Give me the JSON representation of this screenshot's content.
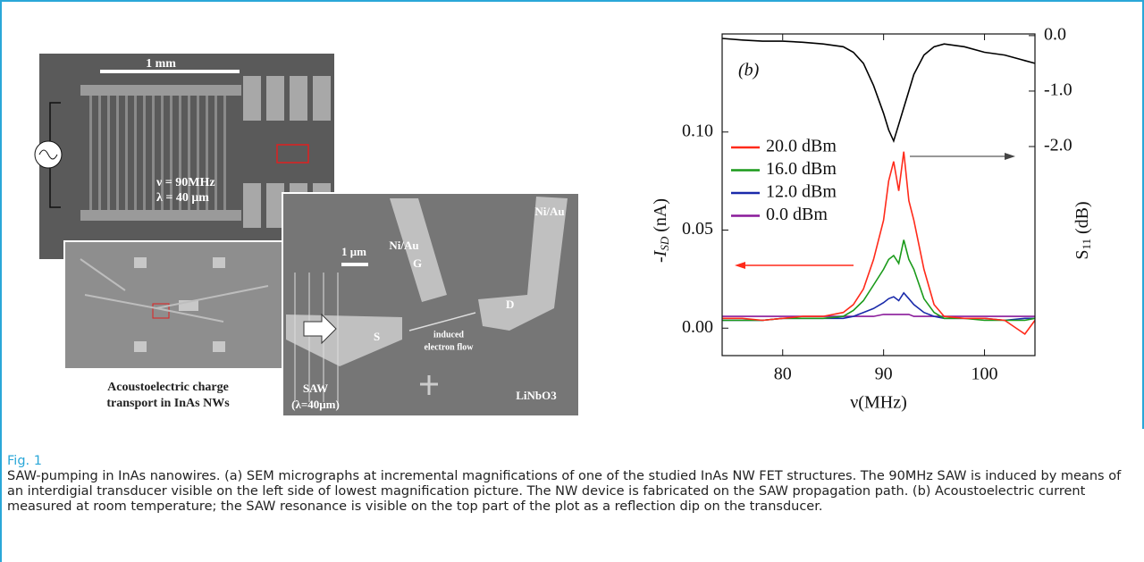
{
  "micrograph": {
    "scale_mm": "1 mm",
    "freq": "ν = 90MHz",
    "wavelength": "λ = 40 μm",
    "scale_um": "1 μm",
    "gate_metal": "Ni/Au",
    "gate": "G",
    "drain_metal": "Ni/Au",
    "drain": "D",
    "source": "S",
    "flow_1": "induced",
    "flow_2": "electron flow",
    "saw": "SAW",
    "saw_lambda": "(λ=40μm)",
    "substrate": "LiNbO3",
    "title_1": "Acoustoelectric charge",
    "title_2": "transport in InAs NWs"
  },
  "chart_data": {
    "type": "line",
    "panel_label": "(b)",
    "xlabel": "ν(MHz)",
    "ylabel": [
      "-I",
      "SD",
      "(nA)"
    ],
    "y2label": [
      "S",
      "11",
      "(dB)"
    ],
    "x": [
      74,
      76,
      78,
      80,
      82,
      84,
      86,
      87,
      88,
      89,
      90,
      90.5,
      91,
      91.5,
      92,
      92.5,
      93,
      94,
      95,
      96,
      98,
      100,
      102,
      104,
      105
    ],
    "xlim": [
      74,
      105
    ],
    "xticks": [
      80,
      90,
      100
    ],
    "ylim": [
      -0.014,
      0.15
    ],
    "yticks": [
      {
        "value": 0,
        "label": "0.00"
      },
      {
        "value": 0.05,
        "label": "0.05"
      },
      {
        "value": 0.1,
        "label": "0.10"
      }
    ],
    "y2lim": [
      -5.77,
      0.03
    ],
    "y2ticks": [
      {
        "value": 0,
        "label": "0.0"
      },
      {
        "value": -1,
        "label": "-1.0"
      },
      {
        "value": -2,
        "label": "-2.0"
      }
    ],
    "series": [
      {
        "color": "#000000",
        "axis": "y2",
        "values": [
          -0.05,
          -0.08,
          -0.1,
          -0.1,
          -0.12,
          -0.15,
          -0.2,
          -0.3,
          -0.5,
          -0.9,
          -1.4,
          -1.7,
          -1.9,
          -1.6,
          -1.3,
          -1.0,
          -0.7,
          -0.35,
          -0.2,
          -0.15,
          -0.2,
          -0.3,
          -0.35,
          -0.45,
          -0.5
        ]
      },
      {
        "name": "20.0 dBm",
        "color": "#ff2a1a",
        "values": [
          0.005,
          0.005,
          0.004,
          0.005,
          0.006,
          0.006,
          0.008,
          0.012,
          0.02,
          0.035,
          0.055,
          0.075,
          0.085,
          0.07,
          0.09,
          0.065,
          0.055,
          0.03,
          0.012,
          0.006,
          0.005,
          0.005,
          0.004,
          -0.003,
          0.004
        ]
      },
      {
        "name": "16.0 dBm",
        "color": "#1a9a1a",
        "values": [
          0.004,
          0.004,
          0.004,
          0.005,
          0.005,
          0.005,
          0.006,
          0.009,
          0.014,
          0.022,
          0.03,
          0.035,
          0.037,
          0.033,
          0.045,
          0.035,
          0.03,
          0.015,
          0.008,
          0.005,
          0.005,
          0.004,
          0.004,
          0.004,
          0.005
        ]
      },
      {
        "name": "12.0 dBm",
        "color": "#1a2aaa",
        "values": [
          0.004,
          0.004,
          0.004,
          0.005,
          0.005,
          0.005,
          0.005,
          0.006,
          0.008,
          0.01,
          0.013,
          0.015,
          0.016,
          0.014,
          0.018,
          0.015,
          0.012,
          0.008,
          0.006,
          0.005,
          0.005,
          0.005,
          0.004,
          0.005,
          0.005
        ]
      },
      {
        "name": "0.0 dBm",
        "color": "#8a1a9a",
        "values": [
          0.006,
          0.006,
          0.006,
          0.006,
          0.006,
          0.006,
          0.006,
          0.006,
          0.006,
          0.006,
          0.007,
          0.007,
          0.007,
          0.007,
          0.007,
          0.007,
          0.006,
          0.006,
          0.006,
          0.006,
          0.006,
          0.006,
          0.006,
          0.006,
          0.006
        ]
      }
    ]
  },
  "caption": {
    "label": "Fig. 1",
    "text": "SAW-pumping in InAs nanowires. (a) SEM micrographs at incremental magnifications of one of the studied InAs NW FET structures. The 90MHz SAW is induced by means of an interdigial transducer visible on the left side of lowest magnification picture. The NW device is fabricated on the SAW propagation path. (b) Acoustoelectric current measured at room temperature; the SAW resonance is visible on the top part of the plot as a reflection dip on the transducer."
  }
}
